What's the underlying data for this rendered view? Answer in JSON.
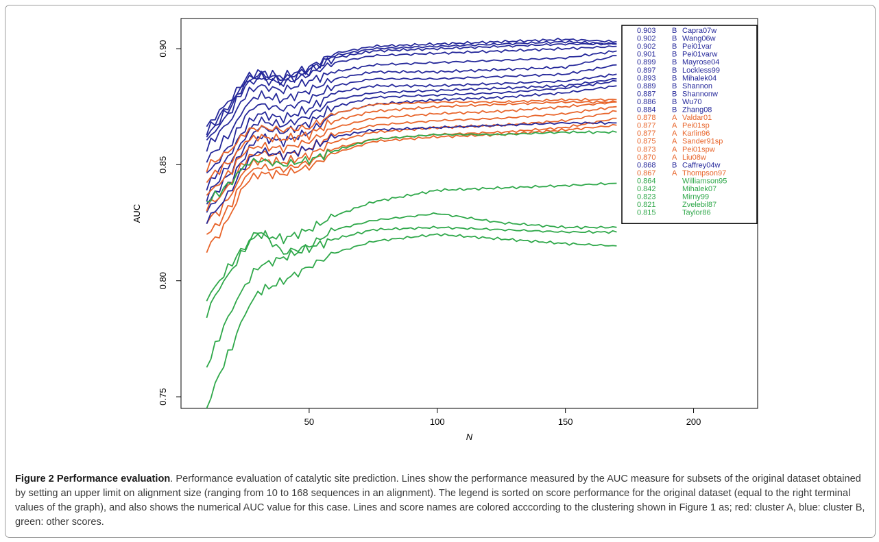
{
  "chart_data": {
    "type": "line",
    "xlabel": "N",
    "ylabel": "AUC",
    "xlim": [
      0,
      225
    ],
    "ylim": [
      0.745,
      0.913
    ],
    "xticks": [
      50,
      100,
      150,
      200
    ],
    "yticks": [
      0.75,
      0.8,
      0.85,
      0.9
    ],
    "xtick_labels": [
      "50",
      "100",
      "150",
      "200"
    ],
    "ytick_labels": [
      "0.75",
      "0.80",
      "0.85",
      "0.90"
    ],
    "grid": false,
    "legend_position": "top-right",
    "cluster_colors": {
      "A": "#e8642a",
      "B": "#25289a",
      "other": "#2fa84a"
    },
    "series": [
      {
        "name": "Capra07w",
        "auc": "0.903",
        "cluster": "B",
        "color": "#25289a",
        "x": [
          10,
          15,
          20,
          25,
          30,
          40,
          50,
          60,
          75,
          100,
          125,
          150,
          170
        ],
        "y": [
          0.866,
          0.873,
          0.879,
          0.887,
          0.89,
          0.888,
          0.892,
          0.898,
          0.901,
          0.902,
          0.903,
          0.904,
          0.903
        ]
      },
      {
        "name": "Wang06w",
        "auc": "0.902",
        "cluster": "B",
        "color": "#25289a",
        "x": [
          10,
          15,
          20,
          25,
          30,
          40,
          50,
          60,
          75,
          100,
          125,
          150,
          170
        ],
        "y": [
          0.864,
          0.871,
          0.877,
          0.886,
          0.889,
          0.887,
          0.891,
          0.897,
          0.9,
          0.901,
          0.902,
          0.903,
          0.902
        ]
      },
      {
        "name": "Pei01var",
        "auc": "0.902",
        "cluster": "B",
        "color": "#25289a",
        "x": [
          10,
          15,
          20,
          25,
          30,
          40,
          50,
          60,
          75,
          100,
          125,
          150,
          170
        ],
        "y": [
          0.862,
          0.869,
          0.876,
          0.885,
          0.888,
          0.886,
          0.89,
          0.896,
          0.899,
          0.9,
          0.901,
          0.902,
          0.902
        ]
      },
      {
        "name": "Pei01varw",
        "auc": "0.901",
        "cluster": "B",
        "color": "#25289a",
        "x": [
          10,
          15,
          20,
          25,
          30,
          40,
          50,
          60,
          75,
          100,
          125,
          150,
          170
        ],
        "y": [
          0.86,
          0.867,
          0.874,
          0.884,
          0.887,
          0.885,
          0.889,
          0.894,
          0.897,
          0.898,
          0.899,
          0.9,
          0.901
        ]
      },
      {
        "name": "Mayrose04",
        "auc": "0.899",
        "cluster": "B",
        "color": "#25289a",
        "x": [
          10,
          15,
          20,
          25,
          30,
          40,
          50,
          60,
          75,
          100,
          125,
          150,
          170
        ],
        "y": [
          0.857,
          0.864,
          0.87,
          0.88,
          0.884,
          0.882,
          0.886,
          0.89,
          0.893,
          0.894,
          0.895,
          0.896,
          0.899
        ]
      },
      {
        "name": "Lockless99",
        "auc": "0.897",
        "cluster": "B",
        "color": "#25289a",
        "x": [
          10,
          15,
          20,
          25,
          30,
          40,
          50,
          60,
          75,
          100,
          125,
          150,
          170
        ],
        "y": [
          0.852,
          0.858,
          0.865,
          0.875,
          0.88,
          0.878,
          0.882,
          0.887,
          0.89,
          0.89,
          0.891,
          0.892,
          0.897
        ]
      },
      {
        "name": "Mihalek04",
        "auc": "0.893",
        "cluster": "B",
        "color": "#25289a",
        "x": [
          10,
          15,
          20,
          25,
          30,
          40,
          50,
          60,
          75,
          100,
          125,
          150,
          170
        ],
        "y": [
          0.846,
          0.852,
          0.86,
          0.871,
          0.876,
          0.874,
          0.878,
          0.884,
          0.887,
          0.887,
          0.888,
          0.889,
          0.893
        ]
      },
      {
        "name": "Shannon",
        "auc": "0.889",
        "cluster": "B",
        "color": "#25289a",
        "x": [
          10,
          15,
          20,
          25,
          30,
          40,
          50,
          60,
          75,
          100,
          125,
          150,
          170
        ],
        "y": [
          0.84,
          0.848,
          0.856,
          0.866,
          0.872,
          0.87,
          0.874,
          0.881,
          0.884,
          0.884,
          0.885,
          0.886,
          0.889
        ]
      },
      {
        "name": "Shannonw",
        "auc": "0.887",
        "cluster": "B",
        "color": "#25289a",
        "x": [
          10,
          15,
          20,
          25,
          30,
          40,
          50,
          60,
          75,
          100,
          125,
          150,
          170
        ],
        "y": [
          0.836,
          0.844,
          0.852,
          0.862,
          0.869,
          0.867,
          0.871,
          0.878,
          0.881,
          0.882,
          0.883,
          0.884,
          0.887
        ]
      },
      {
        "name": "Wu70",
        "auc": "0.886",
        "cluster": "B",
        "color": "#25289a",
        "x": [
          10,
          15,
          20,
          25,
          30,
          40,
          50,
          60,
          75,
          100,
          125,
          150,
          170
        ],
        "y": [
          0.833,
          0.84,
          0.848,
          0.858,
          0.866,
          0.864,
          0.868,
          0.875,
          0.879,
          0.88,
          0.881,
          0.883,
          0.886
        ]
      },
      {
        "name": "Zhang08",
        "auc": "0.884",
        "cluster": "B",
        "color": "#25289a",
        "x": [
          10,
          15,
          20,
          25,
          30,
          40,
          50,
          60,
          75,
          100,
          125,
          150,
          170
        ],
        "y": [
          0.83,
          0.836,
          0.844,
          0.854,
          0.862,
          0.86,
          0.864,
          0.872,
          0.876,
          0.878,
          0.879,
          0.881,
          0.884
        ]
      },
      {
        "name": "Valdar01",
        "auc": "0.878",
        "cluster": "A",
        "color": "#e8642a",
        "x": [
          10,
          15,
          20,
          25,
          30,
          40,
          50,
          60,
          75,
          100,
          125,
          150,
          170
        ],
        "y": [
          0.849,
          0.853,
          0.857,
          0.864,
          0.866,
          0.865,
          0.866,
          0.872,
          0.876,
          0.877,
          0.877,
          0.878,
          0.878
        ]
      },
      {
        "name": "Pei01sp",
        "auc": "0.877",
        "cluster": "A",
        "color": "#e8642a",
        "x": [
          10,
          15,
          20,
          25,
          30,
          40,
          50,
          60,
          75,
          100,
          125,
          150,
          170
        ],
        "y": [
          0.843,
          0.848,
          0.852,
          0.86,
          0.862,
          0.861,
          0.863,
          0.869,
          0.873,
          0.875,
          0.876,
          0.877,
          0.877
        ]
      },
      {
        "name": "Karlin96",
        "auc": "0.877",
        "cluster": "A",
        "color": "#e8642a",
        "x": [
          10,
          15,
          20,
          25,
          30,
          40,
          50,
          60,
          75,
          100,
          125,
          150,
          170
        ],
        "y": [
          0.837,
          0.842,
          0.848,
          0.856,
          0.858,
          0.857,
          0.86,
          0.866,
          0.87,
          0.872,
          0.873,
          0.875,
          0.877
        ]
      },
      {
        "name": "Sander91sp",
        "auc": "0.875",
        "cluster": "A",
        "color": "#e8642a",
        "x": [
          10,
          15,
          20,
          25,
          30,
          40,
          50,
          60,
          75,
          100,
          125,
          150,
          170
        ],
        "y": [
          0.832,
          0.836,
          0.843,
          0.852,
          0.855,
          0.854,
          0.857,
          0.863,
          0.867,
          0.869,
          0.87,
          0.872,
          0.875
        ]
      },
      {
        "name": "Pei01spw",
        "auc": "0.873",
        "cluster": "A",
        "color": "#e8642a",
        "x": [
          10,
          15,
          20,
          25,
          30,
          40,
          50,
          60,
          75,
          100,
          125,
          150,
          170
        ],
        "y": [
          0.826,
          0.83,
          0.838,
          0.848,
          0.852,
          0.851,
          0.854,
          0.86,
          0.864,
          0.866,
          0.867,
          0.869,
          0.873
        ]
      },
      {
        "name": "Liu08w",
        "auc": "0.870",
        "cluster": "A",
        "color": "#e8642a",
        "x": [
          10,
          15,
          20,
          25,
          30,
          40,
          50,
          60,
          75,
          100,
          125,
          150,
          170
        ],
        "y": [
          0.82,
          0.825,
          0.834,
          0.845,
          0.849,
          0.848,
          0.851,
          0.857,
          0.861,
          0.863,
          0.864,
          0.866,
          0.87
        ]
      },
      {
        "name": "Caffrey04w",
        "auc": "0.868",
        "cluster": "B",
        "color": "#25289a",
        "x": [
          10,
          15,
          20,
          25,
          30,
          40,
          50,
          60,
          75,
          100,
          125,
          150,
          170
        ],
        "y": [
          0.826,
          0.832,
          0.84,
          0.85,
          0.856,
          0.854,
          0.857,
          0.862,
          0.865,
          0.866,
          0.867,
          0.868,
          0.868
        ]
      },
      {
        "name": "Thompson97",
        "auc": "0.867",
        "cluster": "A",
        "color": "#e8642a",
        "x": [
          10,
          15,
          20,
          25,
          30,
          40,
          50,
          60,
          75,
          100,
          125,
          150,
          170
        ],
        "y": [
          0.814,
          0.82,
          0.83,
          0.842,
          0.846,
          0.846,
          0.849,
          0.855,
          0.86,
          0.862,
          0.863,
          0.865,
          0.867
        ]
      },
      {
        "name": "Williamson95",
        "auc": "0.864",
        "cluster": "other",
        "color": "#2fa84a",
        "x": [
          10,
          15,
          20,
          25,
          30,
          40,
          50,
          60,
          75,
          100,
          125,
          150,
          170
        ],
        "y": [
          0.834,
          0.838,
          0.843,
          0.85,
          0.852,
          0.85,
          0.852,
          0.856,
          0.861,
          0.863,
          0.863,
          0.864,
          0.864
        ]
      },
      {
        "name": "Mihalek07",
        "auc": "0.842",
        "cluster": "other",
        "color": "#2fa84a",
        "x": [
          10,
          15,
          20,
          25,
          30,
          40,
          50,
          60,
          75,
          100,
          125,
          150,
          170
        ],
        "y": [
          0.792,
          0.8,
          0.808,
          0.815,
          0.82,
          0.818,
          0.822,
          0.828,
          0.834,
          0.839,
          0.84,
          0.841,
          0.842
        ]
      },
      {
        "name": "Mirny99",
        "auc": "0.823",
        "cluster": "other",
        "color": "#2fa84a",
        "x": [
          10,
          15,
          20,
          25,
          30,
          40,
          50,
          60,
          75,
          100,
          125,
          150,
          170
        ],
        "y": [
          0.786,
          0.797,
          0.805,
          0.814,
          0.822,
          0.812,
          0.815,
          0.822,
          0.826,
          0.829,
          0.825,
          0.823,
          0.823
        ]
      },
      {
        "name": "Zvelebil87",
        "auc": "0.821",
        "cluster": "other",
        "color": "#2fa84a",
        "x": [
          10,
          15,
          20,
          25,
          30,
          40,
          50,
          60,
          75,
          100,
          125,
          150,
          170
        ],
        "y": [
          0.763,
          0.776,
          0.788,
          0.798,
          0.806,
          0.81,
          0.814,
          0.818,
          0.822,
          0.823,
          0.822,
          0.821,
          0.821
        ]
      },
      {
        "name": "Taylor86",
        "auc": "0.815",
        "cluster": "other",
        "color": "#2fa84a",
        "x": [
          10,
          15,
          20,
          25,
          30,
          40,
          50,
          60,
          75,
          100,
          125,
          150,
          170
        ],
        "y": [
          0.745,
          0.76,
          0.772,
          0.786,
          0.795,
          0.8,
          0.806,
          0.812,
          0.817,
          0.82,
          0.818,
          0.816,
          0.815
        ]
      }
    ]
  },
  "caption": {
    "title": "Figure 2 Performance evaluation",
    "body": ". Performance evaluation of catalytic site prediction. Lines show the performance measured by the AUC measure for subsets of the original dataset obtained by setting an upper limit on alignment size (ranging from 10 to 168 sequences in an alignment). The legend is sorted on score performance for the original dataset (equal to the right terminal values of the graph), and also shows the numerical AUC value for this case. Lines and score names are colored acccording to the clustering shown in Figure 1 as; red: cluster A, blue: cluster B, green: other scores."
  }
}
